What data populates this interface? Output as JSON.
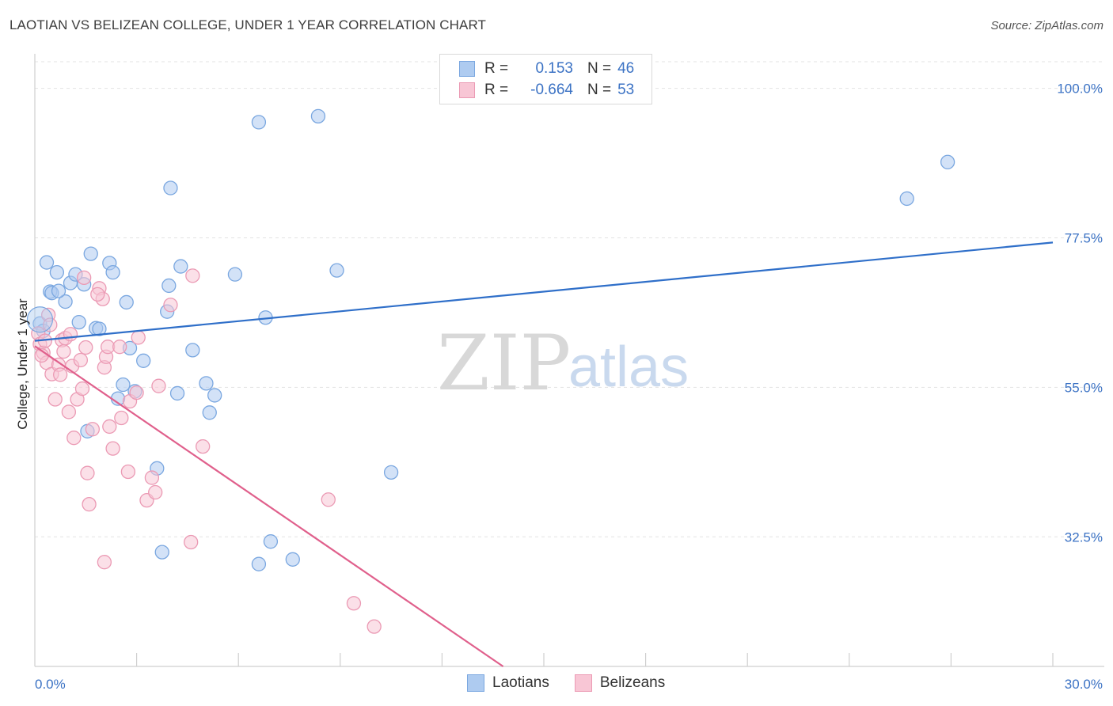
{
  "header": {
    "title": "LAOTIAN VS BELIZEAN COLLEGE, UNDER 1 YEAR CORRELATION CHART",
    "source": "Source: ZipAtlas.com"
  },
  "watermark": {
    "zip": "ZIP",
    "atlas": "atlas"
  },
  "legend": {
    "rows": [
      {
        "label": "R =",
        "r": "0.153",
        "n_label": "N =",
        "n": "46",
        "color": "#aecbf0",
        "border": "#7aa7e0"
      },
      {
        "label": "R =",
        "r": "-0.664",
        "n_label": "N =",
        "n": "53",
        "color": "#f8c6d5",
        "border": "#eb9ab4"
      }
    ]
  },
  "bottom_legend": [
    {
      "name": "Laotians",
      "color": "#aecbf0",
      "border": "#7aa7e0"
    },
    {
      "name": "Belizeans",
      "color": "#f8c6d5",
      "border": "#eb9ab4"
    }
  ],
  "chart_data": {
    "type": "scatter",
    "title": "LAOTIAN VS BELIZEAN COLLEGE, UNDER 1 YEAR CORRELATION CHART",
    "xlabel": "",
    "ylabel": "College, Under 1 year",
    "xlim": [
      0,
      30
    ],
    "ylim": [
      13,
      104
    ],
    "x_tick_labels": [
      "0.0%",
      "30.0%"
    ],
    "y_ticks": [
      32.5,
      55.0,
      77.5,
      100.0
    ],
    "y_tick_labels": [
      "32.5%",
      "55.0%",
      "77.5%",
      "100.0%"
    ],
    "grid": true,
    "legend_position": "top-center",
    "series": [
      {
        "name": "Laotians",
        "color": "#7aa7e0",
        "fill": "#aecbf0",
        "trend": {
          "x": [
            0,
            30
          ],
          "y": [
            62.0,
            76.8
          ],
          "color": "#2f6fc9"
        },
        "points": [
          [
            0.15,
            64.6
          ],
          [
            0.35,
            73.8
          ],
          [
            0.45,
            69.4
          ],
          [
            0.65,
            72.3
          ],
          [
            0.9,
            67.9
          ],
          [
            1.05,
            70.7
          ],
          [
            1.3,
            64.8
          ],
          [
            1.45,
            70.5
          ],
          [
            1.55,
            48.4
          ],
          [
            1.65,
            75.1
          ],
          [
            1.8,
            63.9
          ],
          [
            1.9,
            63.8
          ],
          [
            2.2,
            73.7
          ],
          [
            2.3,
            72.3
          ],
          [
            2.6,
            55.4
          ],
          [
            2.45,
            53.3
          ],
          [
            2.7,
            67.8
          ],
          [
            2.8,
            60.9
          ],
          [
            2.95,
            54.4
          ],
          [
            3.2,
            59.0
          ],
          [
            3.6,
            42.8
          ],
          [
            3.75,
            30.2
          ],
          [
            3.9,
            66.4
          ],
          [
            3.95,
            70.3
          ],
          [
            4.0,
            85.0
          ],
          [
            4.2,
            54.1
          ],
          [
            4.3,
            73.2
          ],
          [
            4.65,
            60.6
          ],
          [
            5.05,
            55.6
          ],
          [
            5.15,
            51.2
          ],
          [
            5.3,
            53.8
          ],
          [
            5.9,
            72.0
          ],
          [
            6.6,
            94.9
          ],
          [
            6.6,
            28.4
          ],
          [
            6.8,
            65.5
          ],
          [
            6.95,
            31.8
          ],
          [
            7.6,
            29.1
          ],
          [
            8.35,
            95.8
          ],
          [
            8.9,
            72.6
          ],
          [
            10.5,
            42.2
          ],
          [
            25.7,
            83.4
          ],
          [
            26.9,
            88.9
          ],
          [
            0.25,
            63.5
          ],
          [
            0.5,
            69.2
          ],
          [
            1.2,
            72.0
          ],
          [
            0.7,
            69.5
          ]
        ]
      },
      {
        "name": "Belizeans",
        "color": "#eb9ab4",
        "fill": "#f8c6d5",
        "trend": {
          "x": [
            0,
            13.8
          ],
          "y": [
            61.2,
            13.0
          ],
          "color": "#e0608c"
        },
        "points": [
          [
            0.1,
            63.1
          ],
          [
            0.15,
            61.5
          ],
          [
            0.25,
            60.2
          ],
          [
            0.35,
            58.7
          ],
          [
            0.4,
            65.9
          ],
          [
            0.45,
            64.4
          ],
          [
            0.5,
            57.0
          ],
          [
            0.6,
            53.2
          ],
          [
            0.7,
            58.4
          ],
          [
            0.75,
            56.9
          ],
          [
            0.8,
            62.1
          ],
          [
            0.85,
            60.4
          ],
          [
            0.9,
            62.4
          ],
          [
            1.0,
            51.3
          ],
          [
            1.1,
            58.2
          ],
          [
            1.15,
            47.4
          ],
          [
            1.25,
            53.2
          ],
          [
            1.35,
            59.1
          ],
          [
            1.4,
            54.8
          ],
          [
            1.5,
            61.0
          ],
          [
            1.55,
            42.1
          ],
          [
            1.6,
            37.4
          ],
          [
            1.7,
            48.7
          ],
          [
            1.9,
            69.9
          ],
          [
            2.0,
            68.3
          ],
          [
            2.05,
            58.0
          ],
          [
            2.1,
            59.6
          ],
          [
            2.15,
            61.1
          ],
          [
            2.2,
            49.1
          ],
          [
            2.3,
            45.8
          ],
          [
            2.5,
            61.1
          ],
          [
            2.55,
            50.4
          ],
          [
            2.75,
            42.3
          ],
          [
            2.8,
            52.9
          ],
          [
            3.0,
            54.2
          ],
          [
            3.05,
            62.5
          ],
          [
            3.3,
            38.0
          ],
          [
            3.45,
            41.4
          ],
          [
            3.55,
            39.2
          ],
          [
            3.65,
            55.2
          ],
          [
            4.0,
            67.4
          ],
          [
            4.6,
            31.7
          ],
          [
            4.65,
            71.8
          ],
          [
            4.95,
            46.1
          ],
          [
            8.65,
            38.1
          ],
          [
            9.4,
            22.5
          ],
          [
            10.0,
            19.0
          ],
          [
            2.05,
            28.7
          ],
          [
            0.3,
            62.0
          ],
          [
            1.85,
            69.0
          ],
          [
            0.2,
            59.8
          ],
          [
            1.45,
            71.5
          ],
          [
            1.05,
            63.0
          ]
        ]
      }
    ]
  }
}
